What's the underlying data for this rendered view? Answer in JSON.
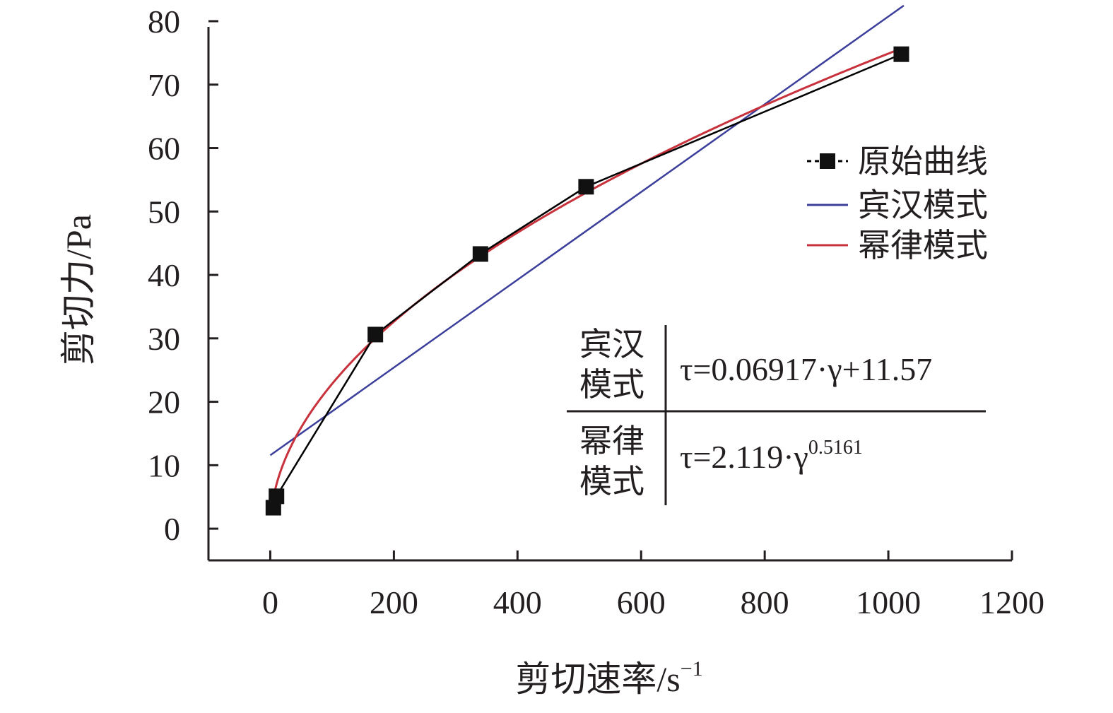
{
  "chart_data": {
    "type": "line",
    "xlabel": "剪切速率/s",
    "xlabel_sup": "−1",
    "ylabel": "剪切力/Pa",
    "xlim": [
      -100,
      1200
    ],
    "ylim": [
      -5,
      80
    ],
    "xticks": [
      0,
      200,
      400,
      600,
      800,
      1000,
      1200
    ],
    "yticks": [
      0,
      10,
      20,
      30,
      40,
      50,
      60,
      70,
      80
    ],
    "grid": false,
    "legend_position": "right",
    "series": [
      {
        "name": "原始曲线",
        "kind": "measured",
        "color": "#000000",
        "marker": "square",
        "points": [
          [
            5,
            3.3
          ],
          [
            10,
            5.1
          ],
          [
            170,
            30.6
          ],
          [
            340,
            43.3
          ],
          [
            511,
            53.9
          ],
          [
            1021,
            74.8
          ]
        ]
      },
      {
        "name": "宾汉模式",
        "kind": "bingham",
        "color": "#3b3f9b",
        "slope": 0.06917,
        "intercept": 11.57
      },
      {
        "name": "幂律模式",
        "kind": "power-law",
        "color": "#c8323c",
        "k": 2.119,
        "n": 0.5161
      }
    ],
    "equations": [
      {
        "name_line1": "宾汉",
        "name_line2": "模式",
        "formula": "τ=0.06917·γ+11.57",
        "sup": ""
      },
      {
        "name_line1": "幂律",
        "name_line2": "模式",
        "formula": "τ=2.119·γ",
        "sup": "0.5161"
      }
    ]
  }
}
